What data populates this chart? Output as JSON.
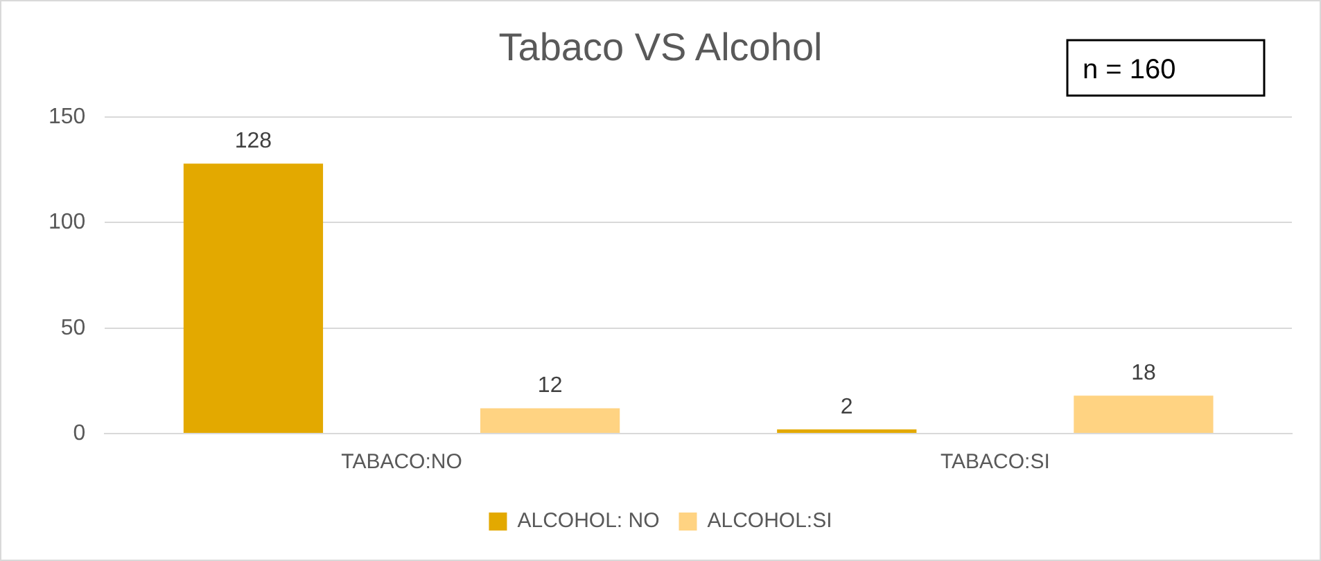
{
  "chart_data": {
    "type": "bar",
    "title": "Tabaco VS Alcohol",
    "categories": [
      "TABACO:NO",
      "TABACO:SI"
    ],
    "series": [
      {
        "name": "ALCOHOL: NO",
        "color": "#e3a900",
        "values": [
          128,
          2
        ]
      },
      {
        "name": "ALCOHOL:SI",
        "color": "#ffd382",
        "values": [
          12,
          18
        ]
      }
    ],
    "ylim": [
      0,
      150
    ],
    "yticks": [
      0,
      50,
      100,
      150
    ],
    "grid": "y",
    "legend": "bottom",
    "data_labels": true,
    "annotations": [
      "n = 160"
    ]
  }
}
